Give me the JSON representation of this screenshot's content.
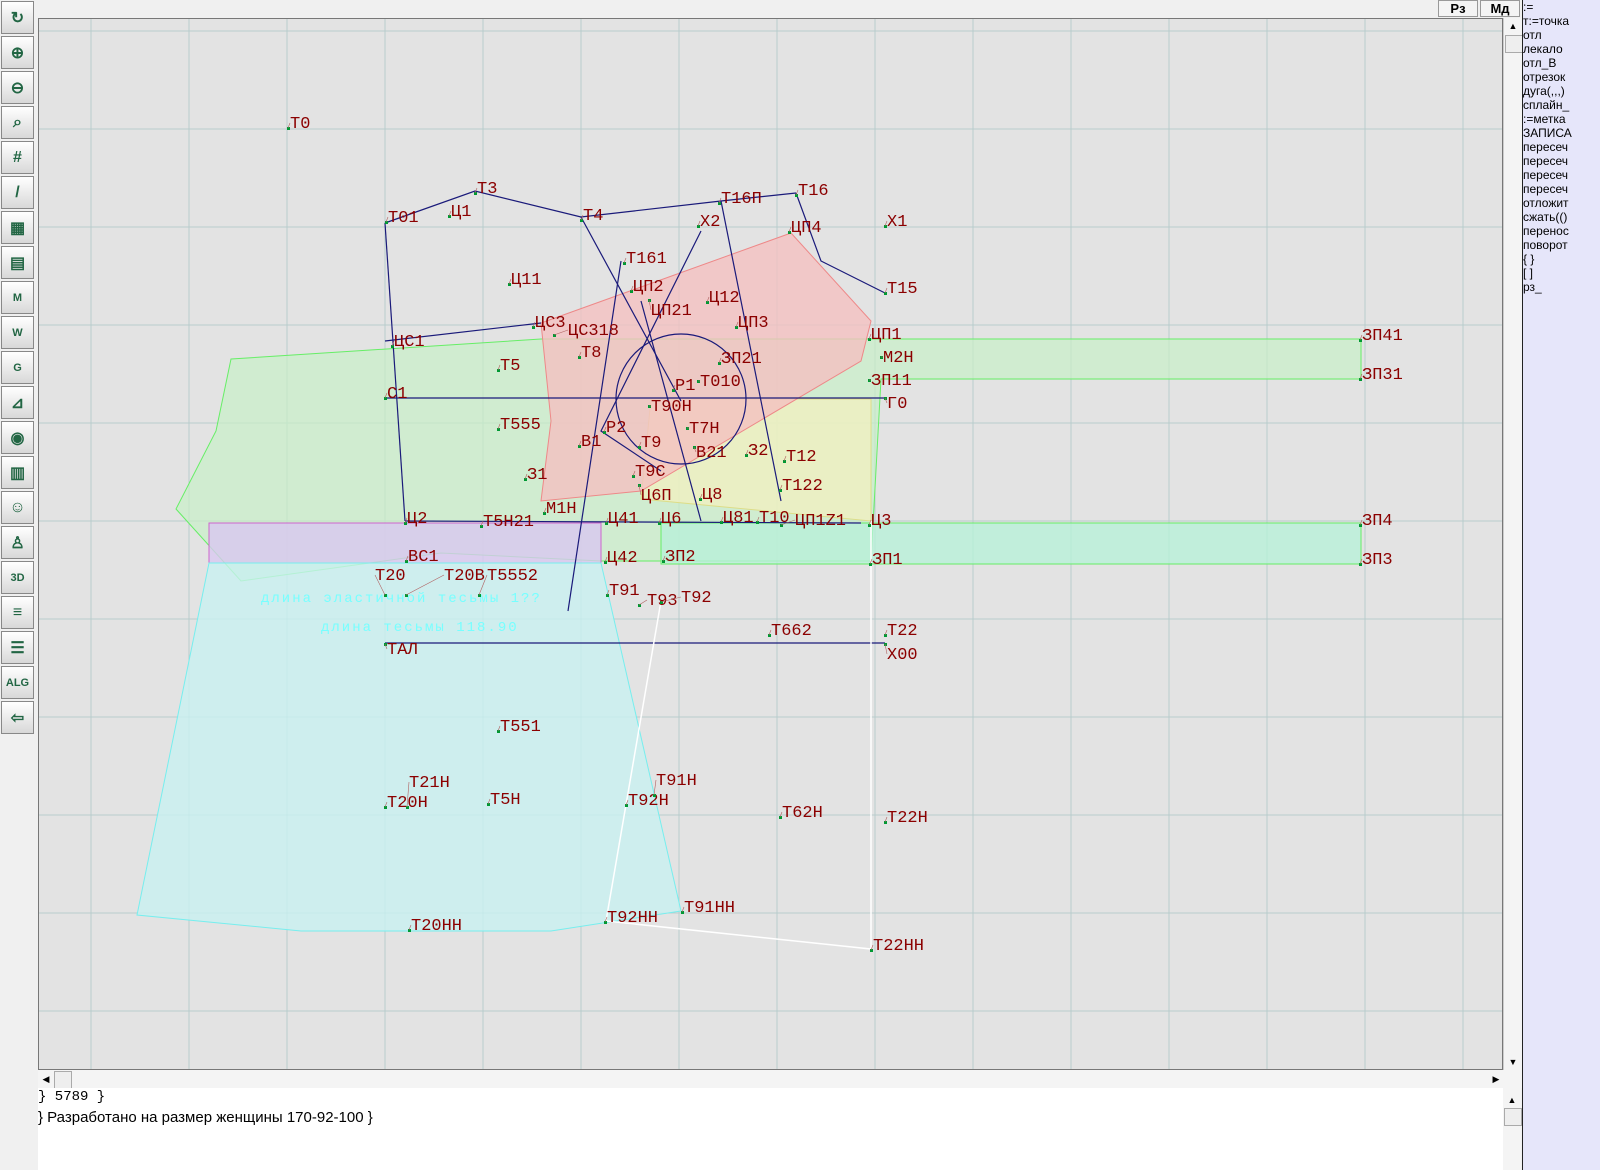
{
  "toolbar": {
    "buttons": [
      "refresh",
      "zoom-in",
      "zoom-out",
      "zoom-fit",
      "grid",
      "line",
      "layer",
      "pattern",
      "M",
      "W",
      "G",
      "measure",
      "camera",
      "table",
      "avatar",
      "jacket",
      "3D",
      "document",
      "layers",
      "ALG",
      "exit"
    ],
    "labels": {
      "M": "M",
      "W": "W",
      "G": "G",
      "3D": "3D",
      "ALG": "ALG"
    }
  },
  "topbar": {
    "rz_label": "Рз",
    "md_label": "Мд"
  },
  "right_panel": {
    "items": [
      ":=",
      "т:=точка",
      "отл",
      "лекало",
      "отл_В",
      "отрезок",
      "дуга(,,,)",
      "сплайн_",
      ":=метка",
      "ЗАПИСА",
      "пересеч",
      "пересеч",
      "пересеч",
      "пересеч",
      "отложит",
      "сжать(()",
      "перенос",
      "поворот",
      "{  }",
      "[  ]",
      "рз_"
    ]
  },
  "canvas": {
    "annotations": [
      "длина эластичной тесьмы 1??",
      "длина тесьмы 118.90"
    ],
    "points": [
      "Т0",
      "Т01",
      "Ц1",
      "Т3",
      "Т4",
      "Т16П",
      "Т16",
      "Х2",
      "ЦП4",
      "Х1",
      "Т161",
      "Ц11",
      "ЦП2",
      "ЦП21",
      "Ц12",
      "Т15",
      "ЦС3",
      "ЦС318",
      "ЦП3",
      "ЦП1",
      "ЦС1",
      "М2Н",
      "Т8",
      "ЗП21",
      "Т5",
      "Т010",
      "ЗП11",
      "С1",
      "Р1",
      "Г0",
      "Т90Н",
      "Т555",
      "Т7Н",
      "Р2",
      "В1",
      "Т9",
      "В21",
      "З2",
      "Т12",
      "З1",
      "Т9С",
      "Ц6П",
      "Т122",
      "Ц8",
      "М1Н",
      "Ц2",
      "Т5Н21",
      "Ц41",
      "Ц6",
      "Ц81",
      "Т10",
      "ЦП1Z1",
      "Ц3",
      "ЗП4",
      "ВС1",
      "Ц42",
      "ЗП2",
      "ЗП1",
      "ЗП3",
      "Т20",
      "Т20В",
      "Т5552",
      "Т91",
      "Т93",
      "Т92",
      "Т662",
      "Т22",
      "ТАЛ",
      "Х00",
      "Т551",
      "Т20Н",
      "Т21Н",
      "Т5Н",
      "Т92Н",
      "Т91Н",
      "Т62Н",
      "Т22Н",
      "Т91НН",
      "Т20НН",
      "Т92НН",
      "Т22НН",
      "ЗП41",
      "ЗП31"
    ]
  },
  "console": {
    "line1": "}   5789 }",
    "line2": "} Разработано на размер женщины 170-92-100 }"
  },
  "colors": {
    "canvas_bg": "#e3e3e3",
    "grid": "#b8cccc",
    "label": "#8b0000",
    "line": "#1a1a7a",
    "green": "#c8f0c8",
    "pink": "#f4c0c0",
    "cyan": "#c8f0f0",
    "yellow": "#f0f0c0",
    "panel": "#e6e6fa"
  }
}
